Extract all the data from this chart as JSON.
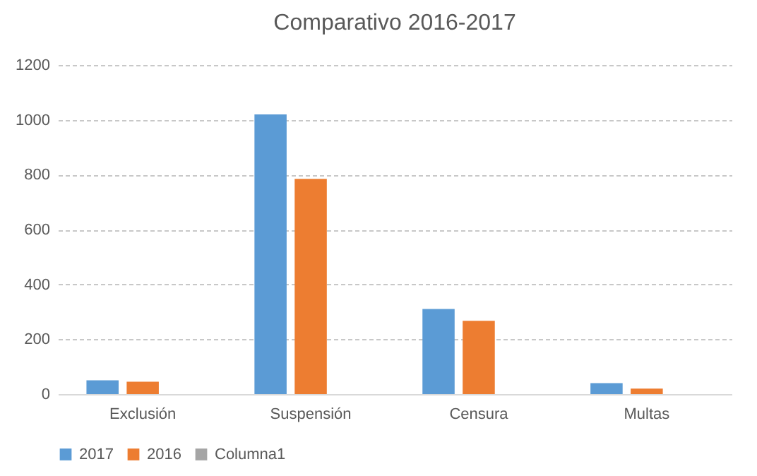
{
  "chart_data": {
    "type": "bar",
    "title": "Comparativo 2016-2017",
    "categories": [
      "Exclusión",
      "Suspensión",
      "Censura",
      "Multas"
    ],
    "series": [
      {
        "name": "2017",
        "color": "#5b9bd5",
        "values": [
          50,
          1020,
          310,
          40
        ]
      },
      {
        "name": "2016",
        "color": "#ed7d31",
        "values": [
          45,
          785,
          267,
          20
        ]
      },
      {
        "name": "Columna1",
        "color": "#a5a5a5",
        "values": [
          null,
          null,
          null,
          null
        ]
      }
    ],
    "ylim": [
      0,
      1200
    ],
    "yticks": [
      0,
      200,
      400,
      600,
      800,
      1000,
      1200
    ],
    "grid": "y",
    "legend": "bottom"
  }
}
